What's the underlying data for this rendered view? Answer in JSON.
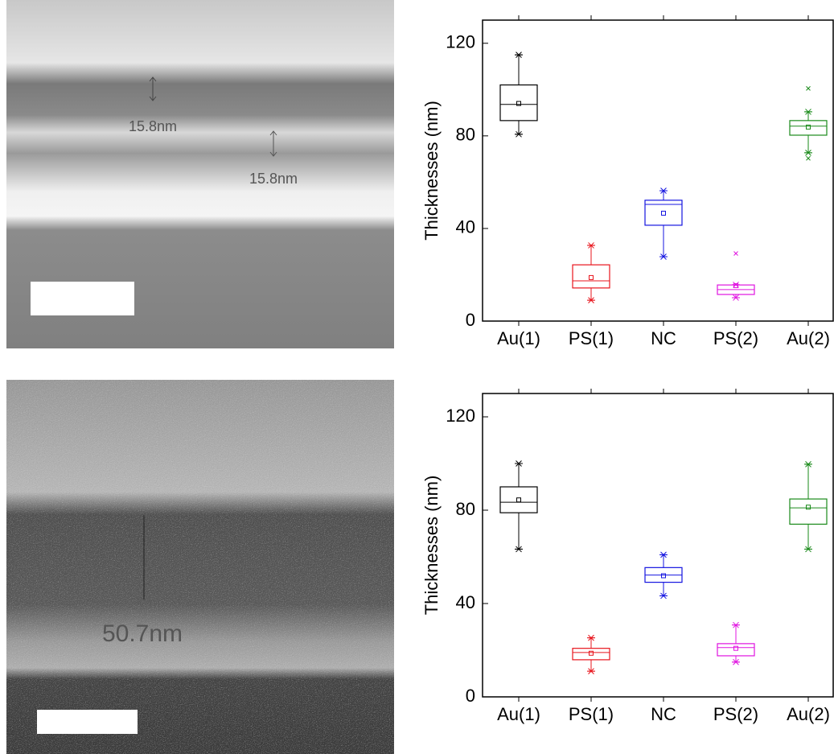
{
  "images": [
    {
      "labels": [
        "15.8nm",
        "15.8nm"
      ]
    },
    {
      "labels": [
        "50.7nm"
      ]
    }
  ],
  "chart_data": [
    {
      "type": "box",
      "y_label": "Thicknesses (nm)",
      "categories": [
        "Au(1)",
        "PS(1)",
        "NC",
        "PS(2)",
        "Au(2)"
      ],
      "colors": [
        "#000000",
        "#e8141c",
        "#1414e0",
        "#e014e0",
        "#1a8a1a"
      ],
      "boxes": [
        {
          "whisker_low": 80.7,
          "q1": 86.6,
          "median": 93.6,
          "q3": 102,
          "whisker_high": 115,
          "mean": 94
        },
        {
          "whisker_low": 9,
          "q1": 14.3,
          "median": 17.4,
          "q3": 24.3,
          "whisker_high": 32.7,
          "mean": 18.8
        },
        {
          "whisker_low": 27.8,
          "q1": 41.4,
          "median": 50.4,
          "q3": 52.2,
          "whisker_high": 56.3,
          "mean": 46.6
        },
        {
          "whisker_low": 10.1,
          "q1": 11.5,
          "median": 13.6,
          "q3": 15.6,
          "whisker_high": 15.7,
          "mean": 15.3,
          "outliers": [
            29.2
          ]
        },
        {
          "whisker_low": 72.7,
          "q1": 80.3,
          "median": 84.2,
          "q3": 86.6,
          "whisker_high": 90.4,
          "mean": 83.8,
          "outliers": [
            100.5,
            70.3
          ]
        }
      ],
      "ylim": [
        0,
        130
      ],
      "yticks": [
        0,
        40,
        80,
        120
      ]
    },
    {
      "type": "box",
      "y_label": "Thicknesses (nm)",
      "categories": [
        "Au(1)",
        "PS(1)",
        "NC",
        "PS(2)",
        "Au(2)"
      ],
      "colors": [
        "#000000",
        "#e8141c",
        "#1414e0",
        "#e014e0",
        "#1a8a1a"
      ],
      "boxes": [
        {
          "whisker_low": 63.3,
          "q1": 78.9,
          "median": 83.4,
          "q3": 90,
          "whisker_high": 100,
          "mean": 84.4
        },
        {
          "whisker_low": 11,
          "q1": 15.9,
          "median": 19,
          "q3": 20.8,
          "whisker_high": 25.3,
          "mean": 18.7
        },
        {
          "whisker_low": 43.3,
          "q1": 49.1,
          "median": 52.2,
          "q3": 55.4,
          "whisker_high": 60.9,
          "mean": 51.9
        },
        {
          "whisker_low": 14.9,
          "q1": 17.6,
          "median": 21.1,
          "q3": 22.8,
          "whisker_high": 30.8,
          "mean": 20.8
        },
        {
          "whisker_low": 63.3,
          "q1": 74,
          "median": 81,
          "q3": 84.8,
          "whisker_high": 99.7,
          "mean": 81.3
        }
      ],
      "ylim": [
        0,
        130
      ],
      "yticks": [
        0,
        40,
        80,
        120
      ]
    }
  ]
}
